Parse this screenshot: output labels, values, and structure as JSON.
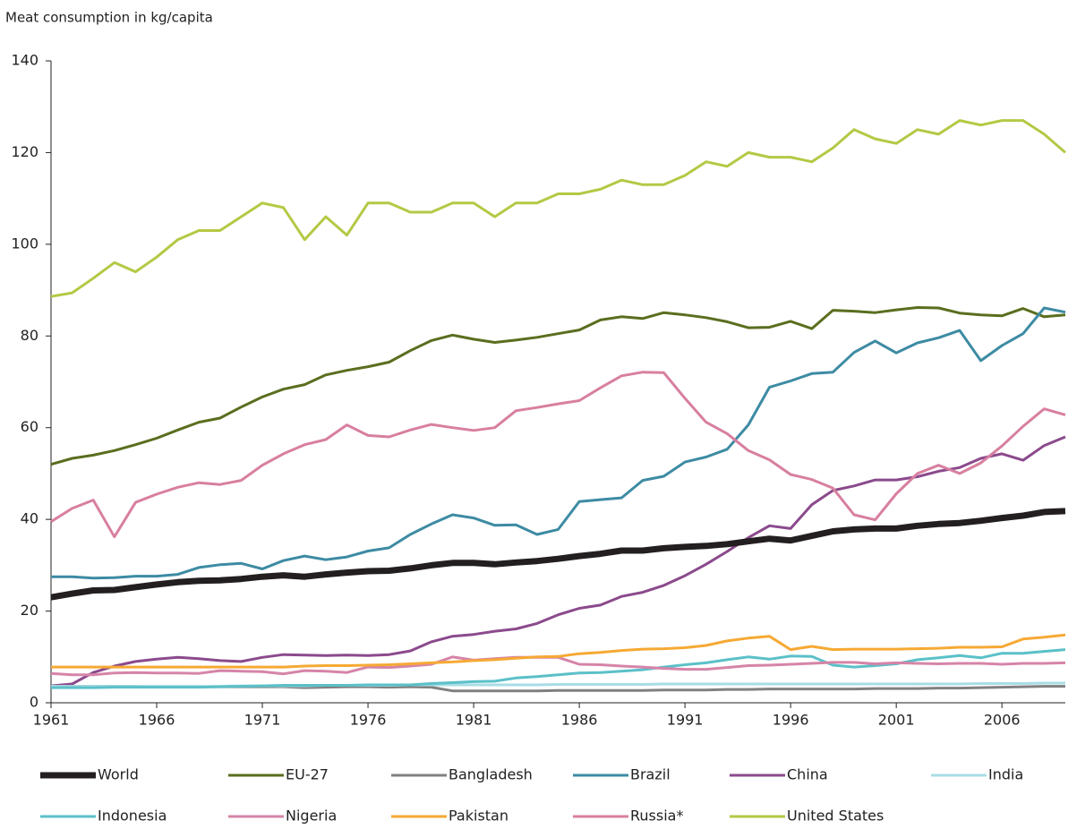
{
  "chart_data": {
    "type": "line",
    "y_label": "Meat consumption in kg/capita",
    "x": [
      1961,
      1962,
      1963,
      1964,
      1965,
      1966,
      1967,
      1968,
      1969,
      1970,
      1971,
      1972,
      1973,
      1974,
      1975,
      1976,
      1977,
      1978,
      1979,
      1980,
      1981,
      1982,
      1983,
      1984,
      1985,
      1986,
      1987,
      1988,
      1989,
      1990,
      1991,
      1992,
      1993,
      1994,
      1995,
      1996,
      1997,
      1998,
      1999,
      2000,
      2001,
      2002,
      2003,
      2004,
      2005,
      2006,
      2007,
      2008,
      2009
    ],
    "xlim": [
      1961,
      2009
    ],
    "xticks": [
      1961,
      1966,
      1971,
      1976,
      1981,
      1986,
      1991,
      1996,
      2001,
      2006
    ],
    "ylim": [
      0,
      140
    ],
    "yticks": [
      0,
      20,
      40,
      60,
      80,
      100,
      120,
      140
    ],
    "series": [
      {
        "name": "World",
        "color": "#231f20",
        "values": [
          23,
          23.8,
          24.5,
          24.6,
          25.2,
          25.8,
          26.3,
          26.6,
          26.7,
          27,
          27.5,
          27.8,
          27.5,
          28,
          28.4,
          28.7,
          28.8,
          29.3,
          30,
          30.5,
          30.5,
          30.2,
          30.6,
          30.9,
          31.4,
          32,
          32.5,
          33.2,
          33.2,
          33.7,
          34,
          34.2,
          34.6,
          35.2,
          35.8,
          35.4,
          36.4,
          37.4,
          37.8,
          38,
          38,
          38.6,
          39,
          39.2,
          39.7,
          40.3,
          40.8,
          41.6,
          41.8
        ]
      },
      {
        "name": "EU-27",
        "color": "#5a6e1e",
        "values": [
          52,
          53.3,
          54,
          55,
          56.3,
          57.7,
          59.5,
          61.2,
          62.1,
          64.5,
          66.7,
          68.4,
          69.4,
          71.5,
          72.5,
          73.3,
          74.3,
          76.8,
          79,
          80.2,
          79.3,
          78.6,
          79.1,
          79.7,
          80.5,
          81.3,
          83.5,
          84.2,
          83.8,
          85.1,
          84.6,
          84,
          83.1,
          81.8,
          81.9,
          83.2,
          81.6,
          85.6,
          85.4,
          85.1,
          85.7,
          86.2,
          86.1,
          85,
          84.6,
          84.4,
          86,
          84.2,
          84.6
        ]
      },
      {
        "name": "Bangladesh",
        "color": "#808080",
        "values": [
          3.6,
          3.6,
          3.6,
          3.6,
          3.6,
          3.5,
          3.5,
          3.5,
          3.5,
          3.5,
          3.5,
          3.5,
          3.3,
          3.4,
          3.5,
          3.5,
          3.4,
          3.5,
          3.4,
          2.6,
          2.6,
          2.6,
          2.6,
          2.6,
          2.7,
          2.7,
          2.7,
          2.7,
          2.7,
          2.8,
          2.8,
          2.8,
          2.9,
          2.9,
          3,
          3,
          3,
          3,
          3,
          3.1,
          3.1,
          3.1,
          3.2,
          3.2,
          3.3,
          3.4,
          3.5,
          3.6,
          3.6
        ]
      },
      {
        "name": "Brazil",
        "color": "#3d8ba3",
        "values": [
          27.5,
          27.5,
          27.2,
          27.3,
          27.6,
          27.6,
          28,
          29.5,
          30.1,
          30.4,
          29.2,
          31,
          32,
          31.2,
          31.8,
          33.1,
          33.8,
          36.7,
          39,
          41,
          40.3,
          38.7,
          38.8,
          36.7,
          37.8,
          43.9,
          44.3,
          44.7,
          48.5,
          49.4,
          52.5,
          53.6,
          55.3,
          60.6,
          68.8,
          70.2,
          71.8,
          72.1,
          76.4,
          78.9,
          76.3,
          78.5,
          79.6,
          81.2,
          74.6,
          77.9,
          80.5,
          86.1,
          85.2
        ]
      },
      {
        "name": "China",
        "color": "#8b4a8c",
        "values": [
          3.7,
          4.1,
          6.6,
          8,
          9,
          9.5,
          9.9,
          9.6,
          9.2,
          9,
          9.9,
          10.5,
          10.4,
          10.3,
          10.4,
          10.3,
          10.5,
          11.3,
          13.3,
          14.5,
          14.9,
          15.6,
          16.1,
          17.3,
          19.2,
          20.6,
          21.3,
          23.2,
          24.1,
          25.6,
          27.7,
          30.2,
          33,
          36,
          38.6,
          38,
          43.2,
          46.3,
          47.3,
          48.6,
          48.6,
          49.3,
          50.5,
          51.3,
          53.3,
          54.3,
          52.9,
          56.1,
          58
        ]
      },
      {
        "name": "India",
        "color": "#a8dde6",
        "values": [
          3.6,
          3.6,
          3.6,
          3.6,
          3.6,
          3.6,
          3.6,
          3.6,
          3.6,
          3.7,
          3.7,
          3.7,
          3.7,
          3.8,
          3.8,
          3.8,
          3.8,
          3.9,
          3.9,
          3.9,
          3.9,
          3.9,
          3.9,
          3.9,
          4,
          4,
          4,
          4,
          4,
          4.1,
          4.1,
          4.1,
          4.1,
          4.1,
          4.1,
          4.1,
          4.1,
          4.1,
          4.1,
          4.1,
          4.1,
          4.1,
          4.1,
          4.1,
          4.2,
          4.2,
          4.2,
          4.3,
          4.3
        ]
      },
      {
        "name": "Indonesia",
        "color": "#5bc0c8",
        "values": [
          3.3,
          3.3,
          3.3,
          3.4,
          3.4,
          3.4,
          3.4,
          3.4,
          3.5,
          3.6,
          3.7,
          3.8,
          3.8,
          3.8,
          3.8,
          3.9,
          3.9,
          3.9,
          4.2,
          4.4,
          4.6,
          4.7,
          5.4,
          5.7,
          6.1,
          6.5,
          6.6,
          6.9,
          7.2,
          7.8,
          8.3,
          8.7,
          9.4,
          10,
          9.5,
          10.2,
          10.1,
          8.2,
          7.8,
          8.1,
          8.5,
          9.4,
          9.8,
          10.3,
          9.8,
          10.8,
          10.8,
          11.2,
          11.6
        ]
      },
      {
        "name": "Nigeria",
        "color": "#d684a8",
        "values": [
          6.4,
          6.1,
          6.1,
          6.5,
          6.6,
          6.5,
          6.5,
          6.4,
          7,
          6.9,
          6.8,
          6.3,
          7,
          6.9,
          6.6,
          7.8,
          7.7,
          8,
          8.4,
          10,
          9.3,
          9.6,
          9.9,
          9.9,
          9.9,
          8.4,
          8.3,
          8,
          7.8,
          7.5,
          7.3,
          7.3,
          7.7,
          8.1,
          8.2,
          8.4,
          8.6,
          8.8,
          8.8,
          8.5,
          8.7,
          8.6,
          8.5,
          8.6,
          8.6,
          8.4,
          8.6,
          8.6,
          8.7
        ]
      },
      {
        "name": "Pakistan",
        "color": "#f6a934",
        "values": [
          7.8,
          7.8,
          7.8,
          7.8,
          7.8,
          7.8,
          7.8,
          7.8,
          7.8,
          7.8,
          7.8,
          7.8,
          8,
          8.1,
          8.1,
          8.2,
          8.3,
          8.5,
          8.7,
          8.9,
          9.2,
          9.4,
          9.7,
          10,
          10.1,
          10.7,
          11,
          11.4,
          11.7,
          11.8,
          12,
          12.5,
          13.5,
          14.1,
          14.5,
          11.6,
          12.3,
          11.6,
          11.7,
          11.7,
          11.7,
          11.8,
          11.9,
          12.1,
          12.1,
          12.2,
          13.9,
          14.3,
          14.8
        ]
      },
      {
        "name": "Russia*",
        "color": "#d87fa0",
        "values": [
          39.5,
          42.4,
          44.2,
          36.2,
          43.7,
          45.5,
          47,
          48,
          47.6,
          48.5,
          51.8,
          54.3,
          56.3,
          57.4,
          60.6,
          58.3,
          58,
          59.5,
          60.7,
          60,
          59.4,
          60,
          63.7,
          64.4,
          65.2,
          65.9,
          68.7,
          71.3,
          72.1,
          72,
          66.4,
          61.2,
          58.7,
          55,
          53,
          49.8,
          48.7,
          46.8,
          41,
          39.9,
          45.6,
          50,
          51.8,
          50,
          52.3,
          56,
          60.3,
          64.1,
          62.8
        ]
      },
      {
        "name": "United States",
        "color": "#b5c844",
        "values": [
          88.6,
          89.4,
          92.6,
          96,
          94,
          97.2,
          101,
          103,
          103,
          106,
          109,
          108,
          101,
          106,
          102,
          109,
          109,
          107,
          107,
          109,
          109,
          106,
          109,
          109,
          111,
          111,
          112,
          114,
          113,
          113,
          115,
          118,
          117,
          120,
          119,
          119,
          118,
          121,
          125,
          123,
          122,
          125,
          124,
          127,
          126,
          127,
          127,
          124,
          120
        ]
      }
    ]
  }
}
